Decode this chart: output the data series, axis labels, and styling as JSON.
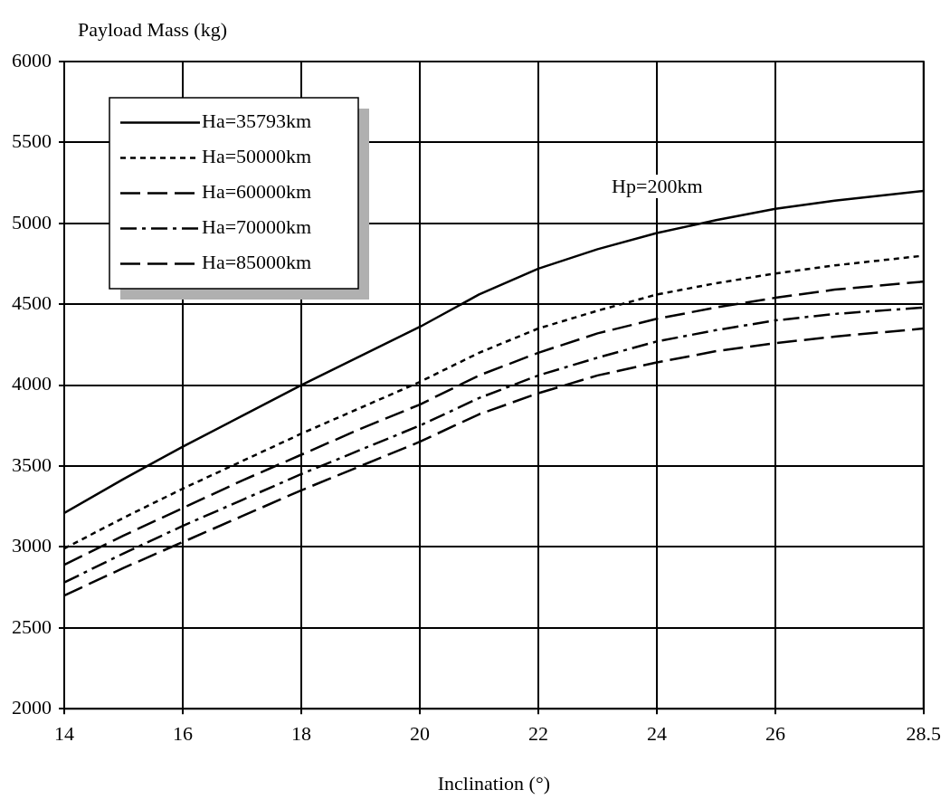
{
  "chart_data": {
    "type": "line",
    "xlabel": "Inclination (°)",
    "ylabel": "Payload Mass (kg)",
    "x": [
      14,
      15,
      16,
      17,
      18,
      19,
      20,
      21,
      22,
      23,
      24,
      25,
      26,
      27,
      28.5
    ],
    "xlim": [
      14,
      28.5
    ],
    "xticks": [
      14,
      16,
      18,
      20,
      22,
      24,
      26,
      28.5
    ],
    "ylim": [
      2000,
      6000
    ],
    "yticks": [
      2000,
      2500,
      3000,
      3500,
      4000,
      4500,
      5000,
      5500,
      6000
    ],
    "grid": true,
    "legend": "top left",
    "marker": "none",
    "annotations": [
      "Hp=200km"
    ],
    "series": [
      {
        "name": "Ha=35793km",
        "color": "#000000",
        "line_style": "solid",
        "values": [
          3210,
          3420,
          3620,
          3810,
          4000,
          4180,
          4360,
          4560,
          4720,
          4840,
          4940,
          5020,
          5090,
          5140,
          5200
        ]
      },
      {
        "name": "Ha=50000km",
        "color": "#000000",
        "line_style": "dotted",
        "values": [
          2990,
          3180,
          3360,
          3530,
          3700,
          3860,
          4020,
          4200,
          4350,
          4460,
          4560,
          4630,
          4690,
          4740,
          4800
        ]
      },
      {
        "name": "Ha=60000km",
        "color": "#000000",
        "line_style": "dashed",
        "values": [
          2890,
          3070,
          3240,
          3410,
          3570,
          3730,
          3880,
          4060,
          4200,
          4320,
          4410,
          4480,
          4540,
          4590,
          4640
        ]
      },
      {
        "name": "Ha=70000km",
        "color": "#000000",
        "line_style": "dashdot",
        "values": [
          2780,
          2960,
          3130,
          3290,
          3450,
          3600,
          3750,
          3920,
          4060,
          4170,
          4270,
          4340,
          4400,
          4440,
          4480
        ]
      },
      {
        "name": "Ha=85000km",
        "color": "#000000",
        "line_style": "dashed",
        "values": [
          2700,
          2870,
          3030,
          3190,
          3350,
          3500,
          3650,
          3820,
          3950,
          4060,
          4140,
          4210,
          4260,
          4300,
          4350
        ]
      }
    ]
  }
}
